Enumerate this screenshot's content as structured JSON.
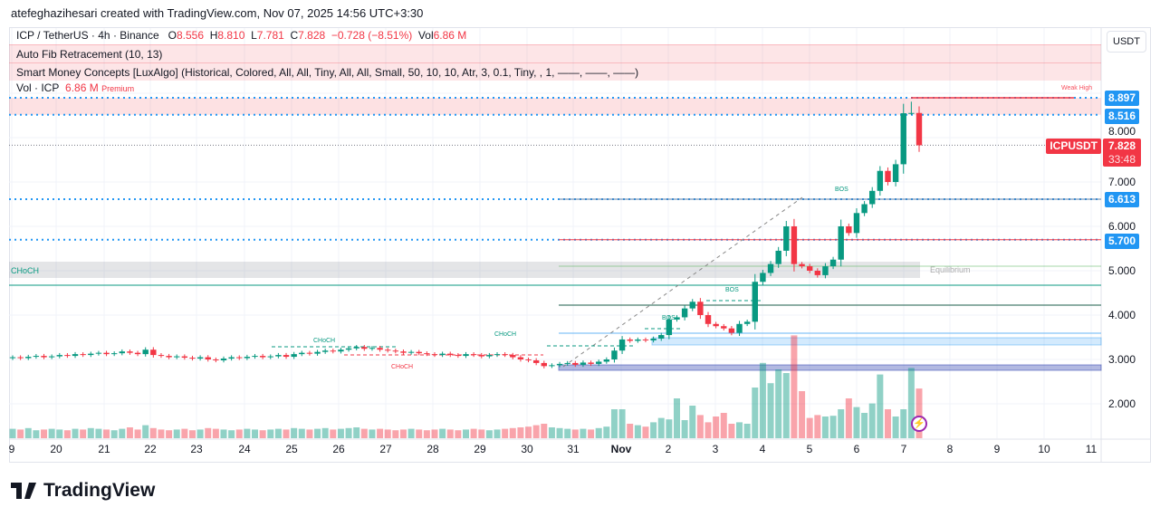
{
  "header": {
    "credit": "atefeghazihesari created with TradingView.com, Nov 07, 2025 14:56 UTC+3:30"
  },
  "legend": {
    "symbol": "ICP / TetherUS · 4h · Binance",
    "o_label": "O",
    "o": "8.556",
    "h_label": "H",
    "h": "8.810",
    "l_label": "L",
    "l": "7.781",
    "c_label": "C",
    "c": "7.828",
    "change": "−0.728 (−8.51%)",
    "vol_label": "Vol",
    "vol": "6.86 M",
    "indicators": [
      "Auto Fib Retracement (10, 13)",
      "Smart Money Concepts [LuxAlgo] (Historical, Colored, All, All, Tiny, All, All, Small, 50, 10, 10, Atr, 3, 0.1, Tiny, , 1, ——, ——, ——)"
    ],
    "vol_row": "Vol · ICP",
    "vol_row_value": "6.86 M",
    "premium": "Premium"
  },
  "currency_button": "USDT",
  "price_axis": {
    "ticks": [
      "8.000",
      "7.000",
      "6.000",
      "5.000",
      "4.000",
      "3.000",
      "2.000"
    ],
    "labels": [
      "8.897",
      "8.516",
      "6.613",
      "5.700"
    ],
    "symbol_tag": "ICPUSDT",
    "last_price": "7.828",
    "countdown": "33:48"
  },
  "time_axis": [
    "9",
    "20",
    "21",
    "22",
    "23",
    "24",
    "25",
    "26",
    "27",
    "28",
    "29",
    "30",
    "31",
    "Nov",
    "2",
    "3",
    "4",
    "5",
    "6",
    "7",
    "8",
    "9",
    "10",
    "11"
  ],
  "annotations": {
    "weak_high": "Weak High",
    "equilibrium": "Equilibrium",
    "choch": "CHoCH",
    "bos": "BOS"
  },
  "colors": {
    "up": "#089981",
    "down": "#f23645",
    "accent": "#2196f3"
  },
  "chart_data": {
    "type": "candlestick",
    "symbol": "ICPUSDT",
    "interval": "4h",
    "ylim": [
      1.4,
      9.3
    ],
    "closes": [
      3.05,
      3.03,
      3.06,
      3.08,
      3.05,
      3.07,
      3.1,
      3.08,
      3.12,
      3.1,
      3.13,
      3.15,
      3.12,
      3.14,
      3.18,
      3.15,
      3.12,
      3.22,
      3.1,
      3.08,
      3.05,
      3.07,
      3.04,
      3.02,
      3.05,
      3.0,
      2.98,
      3.02,
      3.05,
      3.03,
      3.06,
      3.08,
      3.05,
      3.07,
      3.1,
      3.06,
      3.12,
      3.15,
      3.13,
      3.17,
      3.2,
      3.18,
      3.22,
      3.25,
      3.28,
      3.24,
      3.26,
      3.22,
      3.2,
      3.18,
      3.15,
      3.17,
      3.14,
      3.12,
      3.1,
      3.13,
      3.1,
      3.08,
      3.12,
      3.1,
      3.07,
      3.1,
      3.12,
      3.1,
      3.05,
      3.0,
      2.98,
      2.92,
      2.85,
      2.87,
      2.9,
      2.92,
      2.88,
      2.93,
      2.9,
      2.95,
      3.0,
      3.2,
      3.45,
      3.42,
      3.45,
      3.43,
      3.47,
      3.55,
      3.9,
      3.95,
      4.15,
      4.3,
      4.0,
      3.8,
      3.75,
      3.7,
      3.6,
      3.8,
      3.85,
      4.75,
      4.95,
      5.15,
      5.45,
      6.0,
      5.15,
      5.1,
      5.0,
      4.9,
      5.1,
      5.25,
      6.0,
      5.85,
      6.3,
      6.5,
      6.8,
      7.25,
      7.0,
      7.4,
      8.55,
      8.556,
      7.828
    ],
    "volumes_m": [
      1.3,
      1.2,
      1.4,
      1.1,
      1.2,
      1.3,
      1.2,
      1.1,
      1.3,
      1.2,
      1.4,
      1.3,
      1.2,
      1.1,
      1.3,
      1.5,
      1.2,
      1.8,
      1.4,
      1.2,
      1.1,
      1.2,
      1.3,
      1.1,
      1.2,
      1.4,
      1.3,
      1.2,
      1.1,
      1.2,
      1.3,
      1.2,
      1.1,
      1.2,
      1.3,
      1.2,
      1.4,
      1.3,
      1.2,
      1.3,
      1.4,
      1.2,
      1.3,
      1.4,
      1.5,
      1.3,
      1.2,
      1.3,
      1.2,
      1.1,
      1.2,
      1.3,
      1.2,
      1.1,
      1.2,
      1.3,
      1.2,
      1.1,
      1.2,
      1.3,
      1.2,
      1.1,
      1.2,
      1.3,
      1.4,
      1.5,
      1.6,
      1.8,
      2.0,
      1.5,
      1.4,
      1.3,
      1.2,
      1.3,
      1.2,
      1.4,
      1.6,
      4.0,
      4.0,
      2.0,
      1.8,
      1.6,
      2.2,
      2.8,
      2.6,
      5.5,
      2.5,
      4.5,
      3.2,
      2.2,
      3.0,
      3.5,
      2.0,
      2.2,
      2.0,
      7.0,
      10.4,
      7.6,
      9.5,
      9.0,
      14.2,
      6.5,
      2.8,
      3.2,
      3.0,
      3.1,
      4.0,
      5.5,
      4.3,
      3.5,
      4.8,
      8.8,
      4.0,
      3.0,
      4.0,
      9.7,
      6.86
    ]
  }
}
